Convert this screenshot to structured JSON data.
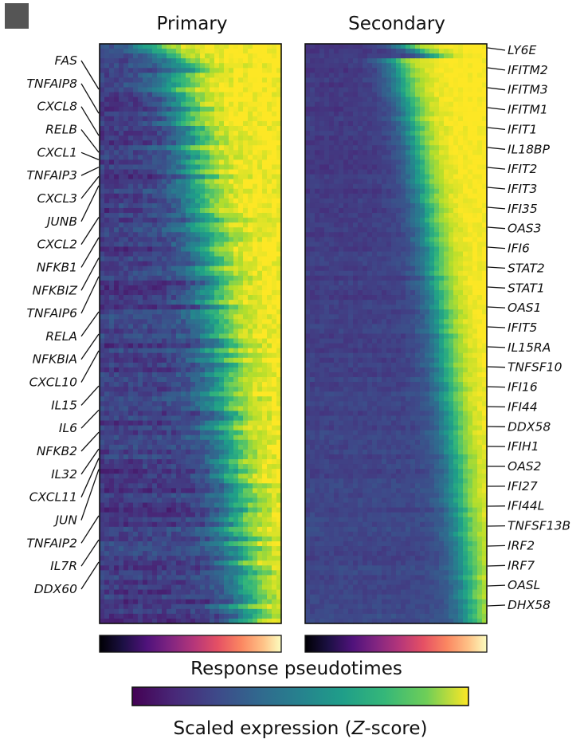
{
  "panel_marker": {
    "color": "#555555"
  },
  "chart_data": {
    "type": "heatmap",
    "panels": [
      {
        "title": "Primary",
        "label_side": "left",
        "genes": [
          "FAS",
          "TNFAIP8",
          "CXCL8",
          "RELB",
          "CXCL1",
          "TNFAIP3",
          "CXCL3",
          "JUNB",
          "CXCL2",
          "NFKB1",
          "NFKBIZ",
          "TNFAIP6",
          "RELA",
          "NFKBIA",
          "CXCL10",
          "IL15",
          "IL6",
          "NFKB2",
          "IL32",
          "CXCL11",
          "JUN",
          "TNFAIP2",
          "IL7R",
          "DDX60"
        ],
        "gene_rows": [
          0.15,
          0.28,
          0.4,
          0.49,
          0.53,
          0.57,
          0.62,
          0.67,
          0.84,
          0.95,
          1.06,
          1.16,
          1.35,
          1.47,
          1.56,
          1.75,
          1.88,
          2.0,
          2.09,
          2.14,
          2.2,
          2.45,
          2.58,
          2.7
        ],
        "rows": 120,
        "mean_onset_pseudotime": 0.62
      },
      {
        "title": "Secondary",
        "label_side": "right",
        "genes": [
          "LY6E",
          "IFITM2",
          "IFITM3",
          "IFITM1",
          "IFIT1",
          "IL18BP",
          "IFIT2",
          "IFIT3",
          "IFI35",
          "OAS3",
          "IFI6",
          "STAT2",
          "STAT1",
          "OAS1",
          "IFIT5",
          "IL15RA",
          "TNFSF10",
          "IFI16",
          "IFI44",
          "DDX58",
          "IFIH1",
          "OAS2",
          "IFI27",
          "IFI44L",
          "TNFSF13B",
          "IRF2",
          "IRF7",
          "OASL",
          "DHX58"
        ],
        "rows": 120,
        "mean_onset_pseudotime": 0.88
      }
    ],
    "pseudotime_colorbar": {
      "label": "Response pseudotimes",
      "colormap": "magma",
      "range": [
        0,
        1
      ]
    },
    "expression_colorbar": {
      "label_prefix": "Scaled expression (",
      "label_italic": "Z",
      "label_suffix": "-score)",
      "colormap": "viridis"
    }
  }
}
